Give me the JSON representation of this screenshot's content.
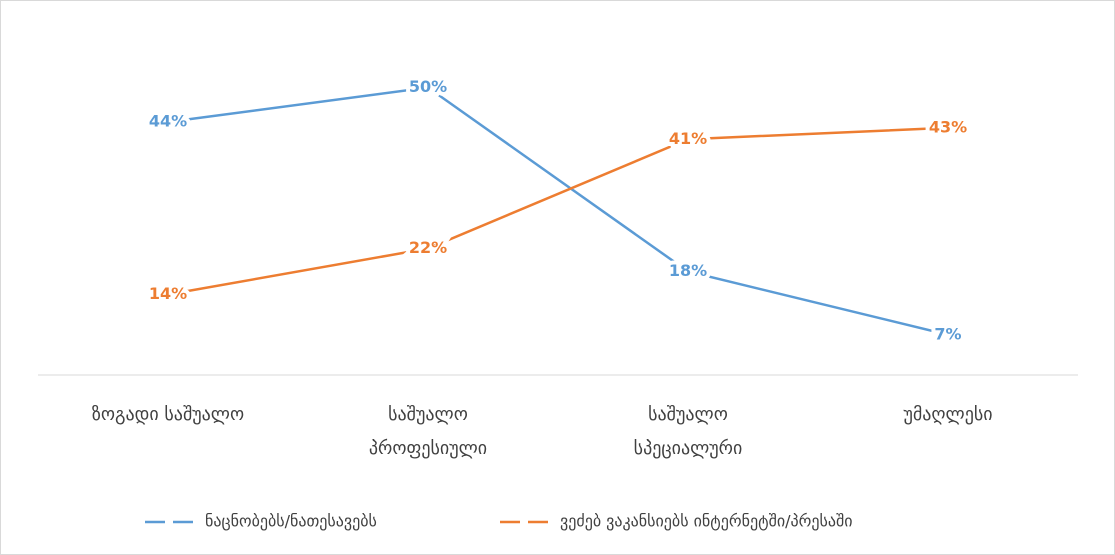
{
  "chart_data": {
    "type": "line",
    "categories": [
      "ზოგადი საშუალო",
      "საშუალო\nპროფესიული",
      "საშუალო\nსპეციალური",
      "უმაღლესი"
    ],
    "series": [
      {
        "name": "ნაცნობებს/ნათესავებს",
        "color": "#5b9bd5",
        "values": [
          44,
          50,
          18,
          7
        ],
        "value_labels": [
          "44%",
          "50%",
          "18%",
          "7%"
        ]
      },
      {
        "name": "ვეძებ ვაკანსიებს ინტერნეტში/პრესაში",
        "color": "#ed7d31",
        "values": [
          14,
          22,
          41,
          43
        ],
        "value_labels": [
          "14%",
          "22%",
          "41%",
          "43%"
        ]
      }
    ],
    "ylim": [
      0,
      60
    ],
    "legend": "bottom"
  }
}
